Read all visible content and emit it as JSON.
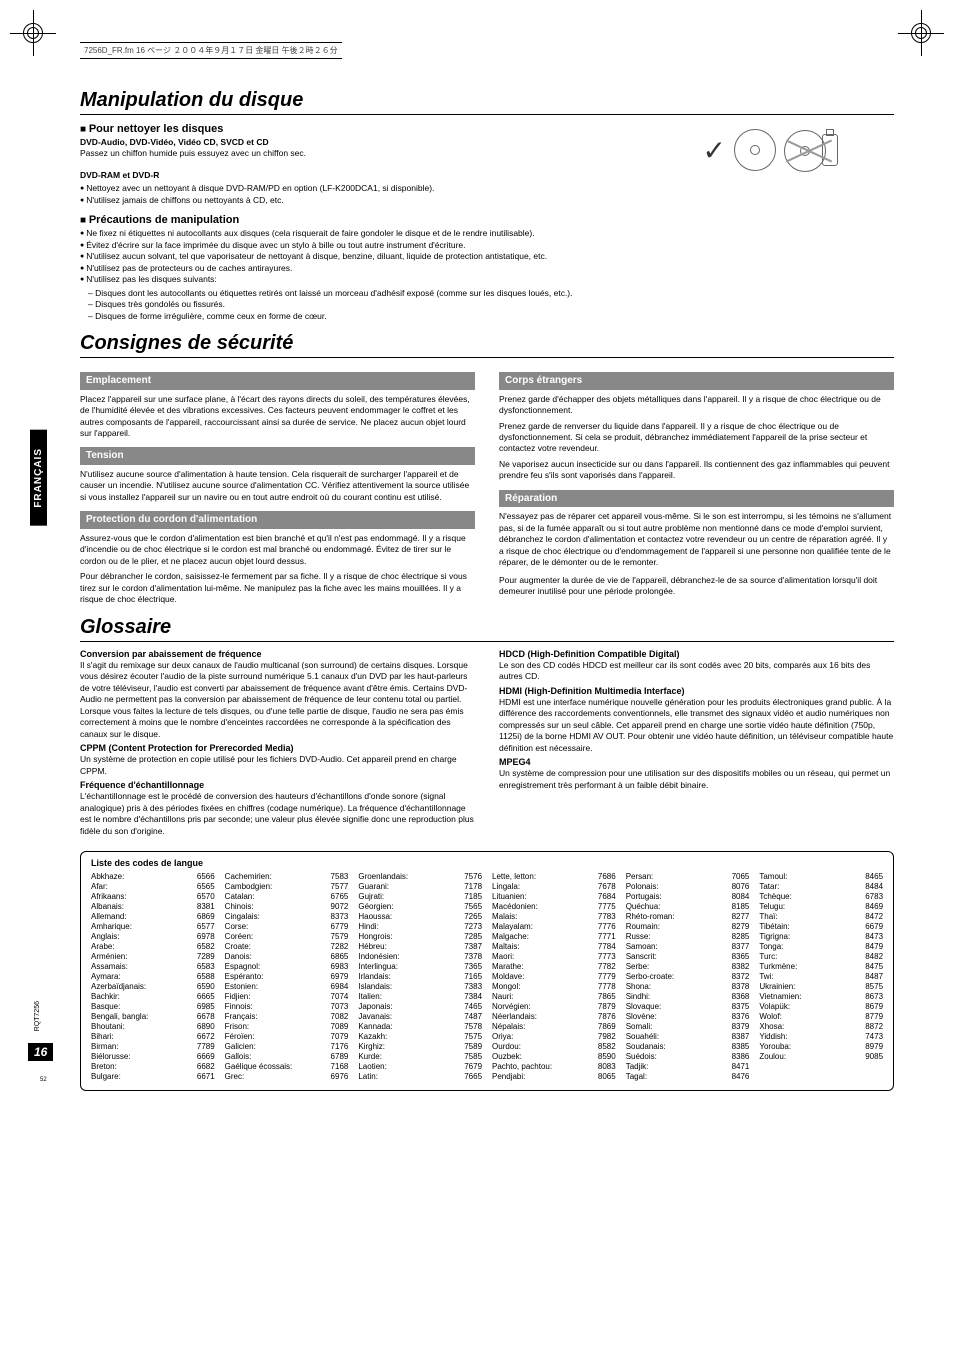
{
  "header_note": "7256D_FR.fm  16 ページ  ２００４年９月１７日  金曜日  午後２時２６分",
  "side_tab": "FRANÇAIS",
  "page_number": "16",
  "rqt": "RQT7256",
  "small52": "52",
  "sec1": {
    "title": "Manipulation du disque",
    "clean": {
      "heading": "Pour nettoyer les disques",
      "line1": "DVD-Audio, DVD-Vidéo, Vidéo CD, SVCD et CD",
      "line2": "Passez un chiffon humide puis essuyez avec un chiffon sec.",
      "line3": "DVD-RAM et DVD-R",
      "b1": "Nettoyez avec un nettoyant à disque DVD-RAM/PD en option (LF-K200DCA1, si disponible).",
      "b2": "N'utilisez jamais de chiffons ou nettoyants à CD, etc."
    },
    "prec": {
      "heading": "Précautions de manipulation",
      "b1": "Ne fixez ni étiquettes ni autocollants aux disques (cela risquerait de faire gondoler le disque et de le rendre inutilisable).",
      "b2": "Évitez d'écrire sur la face imprimée du disque avec un stylo à bille ou tout autre instrument d'écriture.",
      "b3": "N'utilisez aucun solvant, tel que vaporisateur de nettoyant à disque, benzine, diluant, liquide de protection antistatique, etc.",
      "b4": "N'utilisez pas de protecteurs ou de caches antirayures.",
      "b5": "N'utilisez pas les disques suivants:",
      "d1": "Disques dont les autocollants ou étiquettes retirés ont laissé un morceau d'adhésif exposé (comme sur les disques loués, etc.).",
      "d2": "Disques très gondolés ou fissurés.",
      "d3": "Disques de forme irrégulière, comme ceux en forme de cœur."
    }
  },
  "sec2": {
    "title": "Consignes de sécurité",
    "left": {
      "h1": "Emplacement",
      "p1": "Placez l'appareil sur une surface plane, à l'écart des rayons directs du soleil, des températures élevées, de l'humidité élevée et des vibrations excessives. Ces facteurs peuvent endommager le coffret et les autres composants de l'appareil, raccourcissant ainsi sa durée de service. Ne placez aucun objet lourd sur l'appareil.",
      "h2": "Tension",
      "p2": "N'utilisez aucune source d'alimentation à haute tension. Cela risquerait de surcharger l'appareil et de causer un incendie. N'utilisez aucune source d'alimentation CC. Vérifiez attentivement la source utilisée si vous installez l'appareil sur un navire ou en tout autre endroit où du courant continu est utilisé.",
      "h3": "Protection du cordon d'alimentation",
      "p3": "Assurez-vous que le cordon d'alimentation est bien branché et qu'il n'est pas endommagé. Il y a risque d'incendie ou de choc électrique si le cordon est mal branché ou endommagé. Évitez de tirer sur le cordon ou de le plier, et ne placez aucun objet lourd dessus.",
      "p3b": "Pour débrancher le cordon, saisissez-le fermement par sa fiche. Il y a risque de choc électrique si vous tirez sur le cordon d'alimentation lui-même. Ne manipulez pas la fiche avec les mains mouillées. Il y a risque de choc électrique."
    },
    "right": {
      "h1": "Corps étrangers",
      "p1": "Prenez garde d'échapper des objets métalliques dans l'appareil. Il y a risque de choc électrique ou de dysfonctionnement.",
      "p1b": "Prenez garde de renverser du liquide dans l'appareil. Il y a risque de choc électrique ou de dysfonctionnement. Si cela se produit, débranchez immédiatement l'appareil de la prise secteur et contactez votre revendeur.",
      "p1c": "Ne vaporisez aucun insecticide sur ou dans l'appareil. Ils contiennent des gaz inflammables qui peuvent prendre feu s'ils sont vaporisés dans l'appareil.",
      "h2": "Réparation",
      "p2": "N'essayez pas de réparer cet appareil vous-même. Si le son est interrompu, si les témoins ne s'allument pas, si de la fumée apparaît ou si tout autre problème non mentionné dans ce mode d'emploi survient, débranchez le cordon d'alimentation et contactez votre revendeur ou un centre de réparation agréé. Il y a risque de choc électrique ou d'endommagement de l'appareil si une personne non qualifiée tente de le réparer, de le démonter ou de le remonter.",
      "p2b": "Pour augmenter la durée de vie de l'appareil, débranchez-le de sa source d'alimentation lorsqu'il doit demeurer inutilisé pour une période prolongée."
    }
  },
  "sec3": {
    "title": "Glossaire",
    "left": {
      "t1": "Conversion par abaissement de fréquence",
      "p1": "Il s'agit du remixage sur deux canaux de l'audio multicanal (son surround) de certains disques. Lorsque vous désirez écouter l'audio de la piste surround numérique 5.1 canaux d'un DVD par les haut-parleurs de votre téléviseur, l'audio est converti par abaissement de fréquence avant d'être émis. Certains DVD-Audio ne permettent pas la conversion par abaissement de fréquence de leur contenu total ou partiel.",
      "p1b": "Lorsque vous faites la lecture de tels disques, ou d'une telle partie de disque, l'audio ne sera pas émis correctement à moins que le nombre d'enceintes raccordées ne corresponde à la spécification des canaux sur le disque.",
      "t2": "CPPM (Content Protection for Prerecorded Media)",
      "p2": "Un système de protection en copie utilisé pour les fichiers DVD-Audio. Cet appareil prend en charge CPPM.",
      "t3": "Fréquence d'échantillonnage",
      "p3": "L'échantillonnage est le procédé de conversion des hauteurs d'échantillons d'onde sonore (signal analogique) pris à des périodes fixées en chiffres (codage numérique). La fréquence d'échantillonnage est le nombre d'échantillons pris par seconde; une valeur plus élevée signifie donc une reproduction plus fidèle du son d'origine."
    },
    "right": {
      "t1": "HDCD (High-Definition Compatible Digital)",
      "p1": "Le son des CD codés HDCD est meilleur car ils sont codés avec 20 bits, comparés aux 16 bits des autres CD.",
      "t2": "HDMI (High-Definition Multimedia Interface)",
      "p2": "HDMI est une interface numérique nouvelle génération pour les produits électroniques grand public. À la différence des raccordements conventionnels, elle transmet des signaux vidéo et audio numériques non compressés sur un seul câble. Cet appareil prend en charge une sortie vidéo haute définition (750p, 1125i) de la borne HDMI AV OUT. Pour obtenir une vidéo haute définition, un téléviseur compatible haute définition est nécessaire.",
      "t3": "MPEG4",
      "p3": "Un système de compression pour une utilisation sur des dispositifs mobiles ou un réseau, qui permet un enregistrement très performant à un faible débit binaire."
    }
  },
  "lang": {
    "title": "Liste des codes de langue",
    "columns": [
      [
        [
          "Abkhaze:",
          "6566"
        ],
        [
          "Afar:",
          "6565"
        ],
        [
          "Afrikaans:",
          "6570"
        ],
        [
          "Albanais:",
          "8381"
        ],
        [
          "Allemand:",
          "6869"
        ],
        [
          "Amharique:",
          "6577"
        ],
        [
          "Anglais:",
          "6978"
        ],
        [
          "Arabe:",
          "6582"
        ],
        [
          "Arménien:",
          "7289"
        ],
        [
          "Assamais:",
          "6583"
        ],
        [
          "Aymara:",
          "6588"
        ],
        [
          "Azerbaïdjanais:",
          "6590"
        ],
        [
          "Bachkir:",
          "6665"
        ],
        [
          "Basque:",
          "6985"
        ],
        [
          "Bengali, bangla:",
          "6678"
        ],
        [
          "Bhoutani:",
          "6890"
        ],
        [
          "Bihari:",
          "6672"
        ],
        [
          "Birman:",
          "7789"
        ],
        [
          "Biélorusse:",
          "6669"
        ],
        [
          "Breton:",
          "6682"
        ],
        [
          "Bulgare:",
          "6671"
        ]
      ],
      [
        [
          "Cachemirien:",
          "7583"
        ],
        [
          "Cambodgien:",
          "7577"
        ],
        [
          "Catalan:",
          "6765"
        ],
        [
          "Chinois:",
          "9072"
        ],
        [
          "Cingalais:",
          "8373"
        ],
        [
          "Corse:",
          "6779"
        ],
        [
          "Coréen:",
          "7579"
        ],
        [
          "Croate:",
          "7282"
        ],
        [
          "Danois:",
          "6865"
        ],
        [
          "Espagnol:",
          "6983"
        ],
        [
          "Espéranto:",
          "6979"
        ],
        [
          "Estonien:",
          "6984"
        ],
        [
          "Fidjien:",
          "7074"
        ],
        [
          "Finnois:",
          "7073"
        ],
        [
          "Français:",
          "7082"
        ],
        [
          "Frison:",
          "7089"
        ],
        [
          "Féroïen:",
          "7079"
        ],
        [
          "Galicien:",
          "7176"
        ],
        [
          "Gallois:",
          "6789"
        ],
        [
          "Gaélique écossais:",
          "7168"
        ],
        [
          "Grec:",
          "6976"
        ]
      ],
      [
        [
          "Groenlandais:",
          "7576"
        ],
        [
          "Guarani:",
          "7178"
        ],
        [
          "Gujrati:",
          "7185"
        ],
        [
          "Géorgien:",
          "7565"
        ],
        [
          "Haoussa:",
          "7265"
        ],
        [
          "Hindi:",
          "7273"
        ],
        [
          "Hongrois:",
          "7285"
        ],
        [
          "Hébreu:",
          "7387"
        ],
        [
          "Indonésien:",
          "7378"
        ],
        [
          "Interlingua:",
          "7365"
        ],
        [
          "Irlandais:",
          "7165"
        ],
        [
          "Islandais:",
          "7383"
        ],
        [
          "Italien:",
          "7384"
        ],
        [
          "Japonais:",
          "7465"
        ],
        [
          "Javanais:",
          "7487"
        ],
        [
          "Kannada:",
          "7578"
        ],
        [
          "Kazakh:",
          "7575"
        ],
        [
          "Kirghiz:",
          "7589"
        ],
        [
          "Kurde:",
          "7585"
        ],
        [
          "Laotien:",
          "7679"
        ],
        [
          "Latin:",
          "7665"
        ]
      ],
      [
        [
          "Lette, letton:",
          "7686"
        ],
        [
          "Lingala:",
          "7678"
        ],
        [
          "Lituanien:",
          "7684"
        ],
        [
          "Macédonien:",
          "7775"
        ],
        [
          "Malais:",
          "7783"
        ],
        [
          "Malayalam:",
          "7776"
        ],
        [
          "Malgache:",
          "7771"
        ],
        [
          "Maltais:",
          "7784"
        ],
        [
          "Maori:",
          "7773"
        ],
        [
          "Marathe:",
          "7782"
        ],
        [
          "Moldave:",
          "7779"
        ],
        [
          "Mongol:",
          "7778"
        ],
        [
          "Nauri:",
          "7865"
        ],
        [
          "Norvégien:",
          "7879"
        ],
        [
          "Néerlandais:",
          "7876"
        ],
        [
          "Népalais:",
          "7869"
        ],
        [
          "Oriya:",
          "7982"
        ],
        [
          "Ourdou:",
          "8582"
        ],
        [
          "Ouzbek:",
          "8590"
        ],
        [
          "Pachto, pachtou:",
          "8083"
        ],
        [
          "Pendjabi:",
          "8065"
        ]
      ],
      [
        [
          "Persan:",
          "7065"
        ],
        [
          "Polonais:",
          "8076"
        ],
        [
          "Portugais:",
          "8084"
        ],
        [
          "Quéchua:",
          "8185"
        ],
        [
          "Rhéto-roman:",
          "8277"
        ],
        [
          "Roumain:",
          "8279"
        ],
        [
          "Russe:",
          "8285"
        ],
        [
          "Samoan:",
          "8377"
        ],
        [
          "Sanscrit:",
          "8365"
        ],
        [
          "Serbe:",
          "8382"
        ],
        [
          "Serbo-croate:",
          "8372"
        ],
        [
          "Shona:",
          "8378"
        ],
        [
          "Sindhi:",
          "8368"
        ],
        [
          "Slovaque:",
          "8375"
        ],
        [
          "Slovène:",
          "8376"
        ],
        [
          "Somali:",
          "8379"
        ],
        [
          "Souahéli:",
          "8387"
        ],
        [
          "Soudanais:",
          "8385"
        ],
        [
          "Suédois:",
          "8386"
        ],
        [
          "Tadjik:",
          "8471"
        ],
        [
          "Tagal:",
          "8476"
        ]
      ],
      [
        [
          "Tamoul:",
          "8465"
        ],
        [
          "Tatar:",
          "8484"
        ],
        [
          "Tchèque:",
          "6783"
        ],
        [
          "Telugu:",
          "8469"
        ],
        [
          "Thaï:",
          "8472"
        ],
        [
          "Tibétain:",
          "6679"
        ],
        [
          "Tigrigna:",
          "8473"
        ],
        [
          "Tonga:",
          "8479"
        ],
        [
          "Turc:",
          "8482"
        ],
        [
          "Turkmène:",
          "8475"
        ],
        [
          "Twi:",
          "8487"
        ],
        [
          "Ukrainien:",
          "8575"
        ],
        [
          "Vietnamien:",
          "8673"
        ],
        [
          "Volapük:",
          "8679"
        ],
        [
          "Wolof:",
          "8779"
        ],
        [
          "Xhosa:",
          "8872"
        ],
        [
          "Yiddish:",
          "7473"
        ],
        [
          "Yorouba:",
          "8979"
        ],
        [
          "Zoulou:",
          "9085"
        ]
      ]
    ]
  }
}
